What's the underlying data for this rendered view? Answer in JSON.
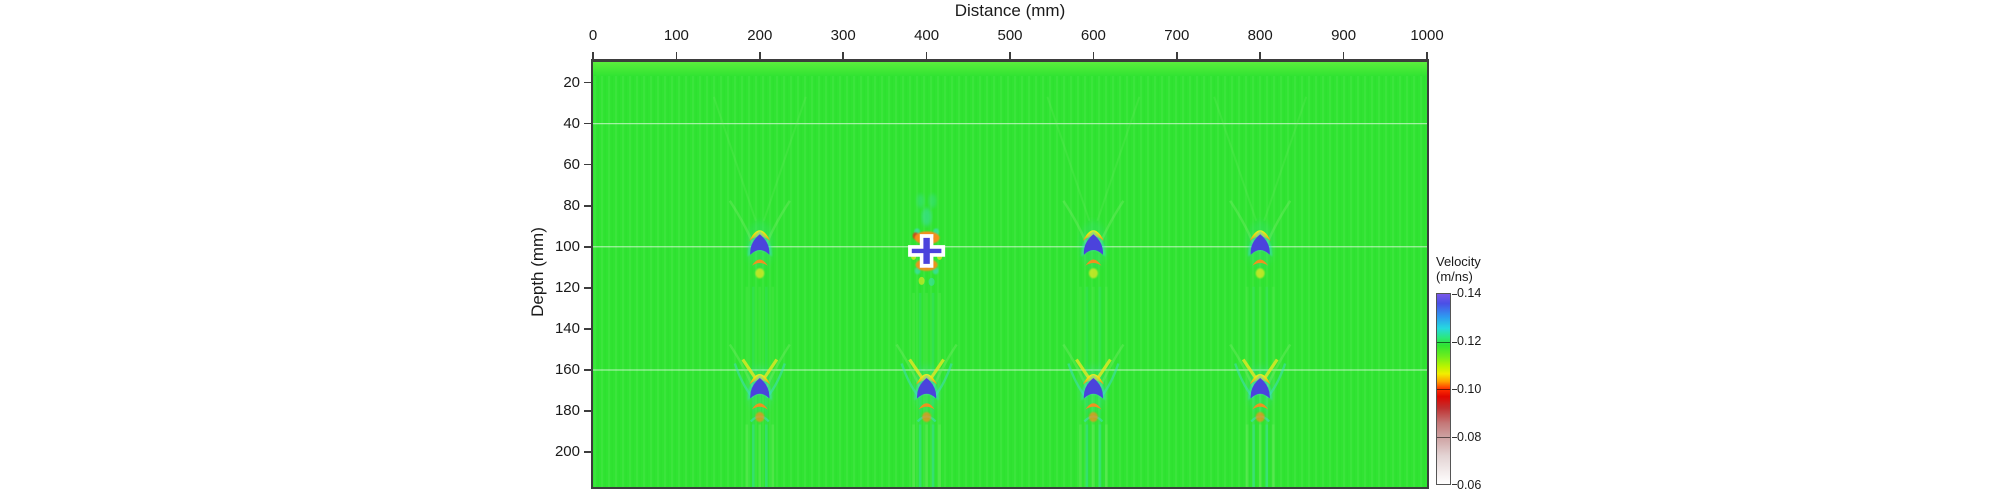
{
  "chart_data": {
    "type": "heatmap",
    "title": "",
    "xlabel": "Distance (mm)",
    "ylabel": "Depth (mm)",
    "x_ticks": [
      0,
      100,
      200,
      300,
      400,
      500,
      600,
      700,
      800,
      900,
      1000
    ],
    "y_ticks": [
      20,
      40,
      60,
      80,
      100,
      120,
      140,
      160,
      180,
      200
    ],
    "x_range_mm": [
      0,
      1000
    ],
    "depth_range_mm": [
      10,
      217
    ],
    "grid": "off",
    "background_velocity_m_per_ns": 0.12,
    "layer_interfaces_depth_mm": [
      40,
      100,
      160
    ],
    "colorbar": {
      "title_lines": [
        "Velocity",
        "(m/ns)"
      ],
      "tick_labels": [
        "0.14",
        "0.12",
        "0.10",
        "0.08",
        "0.06"
      ],
      "tick_values": [
        0.14,
        0.12,
        0.1,
        0.08,
        0.06
      ],
      "range": [
        0.06,
        0.14
      ],
      "orientation": "vertical",
      "position": "right",
      "gradient_stops": [
        {
          "pos": 0.0,
          "color": "#7A58E8"
        },
        {
          "pos": 0.05,
          "color": "#4A4FE6"
        },
        {
          "pos": 0.12,
          "color": "#2E9AF0"
        },
        {
          "pos": 0.18,
          "color": "#26D8E0"
        },
        {
          "pos": 0.23,
          "color": "#2BE87E"
        },
        {
          "pos": 0.27,
          "color": "#30E432"
        },
        {
          "pos": 0.33,
          "color": "#70EE1C"
        },
        {
          "pos": 0.38,
          "color": "#B8F400"
        },
        {
          "pos": 0.42,
          "color": "#F2EE00"
        },
        {
          "pos": 0.46,
          "color": "#FFA400"
        },
        {
          "pos": 0.5,
          "color": "#FF3000"
        },
        {
          "pos": 0.54,
          "color": "#E00600"
        },
        {
          "pos": 0.6,
          "color": "#C03030"
        },
        {
          "pos": 0.68,
          "color": "#C47878"
        },
        {
          "pos": 0.75,
          "color": "#CDA0A0"
        },
        {
          "pos": 0.85,
          "color": "#E3D3D3"
        },
        {
          "pos": 1.0,
          "color": "#FFFFFF"
        }
      ]
    },
    "anomalies": [
      {
        "distance_mm": 200,
        "depth_mm": 100,
        "shape": "chevron",
        "description": "low-velocity reflection (blue chevron with yellow-orange arc above)"
      },
      {
        "distance_mm": 400,
        "depth_mm": 102,
        "shape": "cross",
        "description": "white-outlined blue cross marker with orange-red halo"
      },
      {
        "distance_mm": 600,
        "depth_mm": 100,
        "shape": "chevron",
        "description": "low-velocity reflection (blue chevron with yellow-orange arc above)"
      },
      {
        "distance_mm": 800,
        "depth_mm": 100,
        "shape": "chevron",
        "description": "low-velocity reflection (blue chevron with yellow-orange arc above)"
      },
      {
        "distance_mm": 200,
        "depth_mm": 170,
        "shape": "chevron-deep",
        "description": "deeper reflection with yellow arms and cyan wings"
      },
      {
        "distance_mm": 400,
        "depth_mm": 170,
        "shape": "chevron-deep",
        "description": "deeper reflection with yellow arms and cyan wings"
      },
      {
        "distance_mm": 600,
        "depth_mm": 170,
        "shape": "chevron-deep",
        "description": "deeper reflection with yellow arms and cyan wings"
      },
      {
        "distance_mm": 800,
        "depth_mm": 170,
        "shape": "chevron-deep",
        "description": "deeper reflection with yellow arms and cyan wings"
      }
    ],
    "colors": {
      "background_green": "#30E432",
      "surface_band_green": "#5BEE3C",
      "anomaly_blue": "#4B43DC",
      "arc_yellow": "#F2E822",
      "arc_orange": "#FF8A1C",
      "core_red": "#E82C10",
      "fringe_cyan": "#3EDCC8",
      "faint_green": "#7FEF6E",
      "interface_white": "#FFFFFF",
      "axis_dark": "#3d3d3d"
    }
  }
}
